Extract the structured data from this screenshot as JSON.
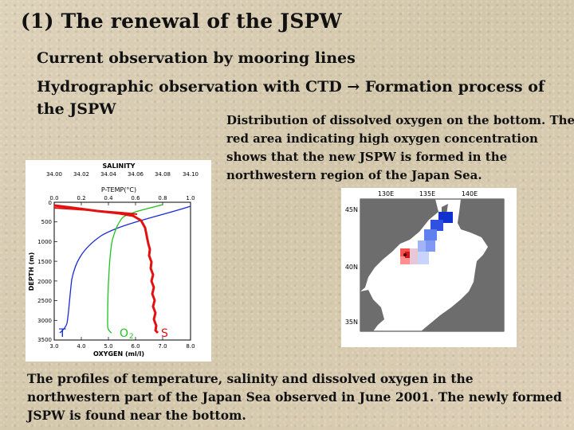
{
  "slide": {
    "title": "(1) The renewal of the JSPW",
    "bullet1": "Current observation by mooring lines",
    "bullet2": "Hydrographic observation with CTD → Formation process of the JSPW",
    "caption_map": "Distribution of dissolved oxygen on the bottom. The red area indicating high oxygen concentration shows that the new JSPW is formed in the northwestern region of the Japan Sea.",
    "caption_profile": "The profiles of temperature, salinity and dissolved oxygen in the northwestern part of the Japan Sea observed in June 2001. The newly formed JSPW is found near the bottom."
  },
  "profile": {
    "salinity_label": "SALINITY",
    "salinity_ticks": [
      "34.00",
      "34.02",
      "34.04",
      "34.06",
      "34.08",
      "34.10"
    ],
    "temp_label": "P-TEMP(°C)",
    "temp_ticks": [
      "0.0",
      "0.2",
      "0.4",
      "0.6",
      "0.8",
      "1.0"
    ],
    "depth_label": "DEPTH (m)",
    "depth_ticks": [
      "0",
      "500",
      "1000",
      "1500",
      "2000",
      "2500",
      "3000",
      "3500"
    ],
    "oxygen_label": "OXYGEN (ml/l)",
    "oxygen_ticks": [
      "3.0",
      "4.0",
      "5.0",
      "6.0",
      "7.0",
      "8.0"
    ],
    "label_T": "T",
    "label_O2": "O",
    "label_O2_sub": "2",
    "label_S": "S",
    "colors": {
      "temperature": "#1a2bd6",
      "oxygen": "#1fc21f",
      "salinity": "#e21010"
    }
  },
  "map": {
    "lon_labels": [
      "130E",
      "135E",
      "140E"
    ],
    "lat_labels": [
      "45N",
      "40N",
      "35N"
    ]
  }
}
